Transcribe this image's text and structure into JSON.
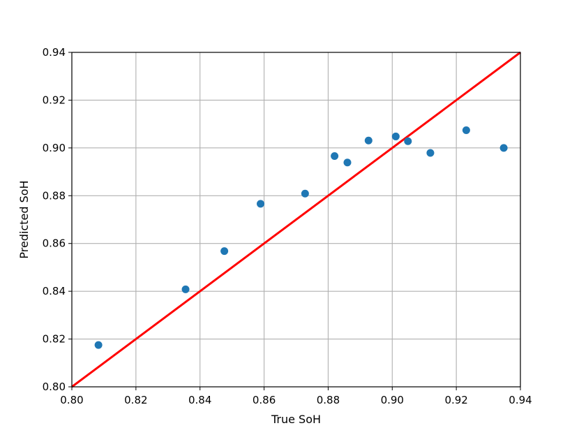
{
  "chart_data": {
    "type": "scatter",
    "xlabel": "True SoH",
    "ylabel": "Predicted SoH",
    "xlim": [
      0.8,
      0.94
    ],
    "ylim": [
      0.8,
      0.94
    ],
    "xticks": [
      "0.80",
      "0.82",
      "0.84",
      "0.86",
      "0.88",
      "0.90",
      "0.92",
      "0.94"
    ],
    "yticks": [
      "0.80",
      "0.82",
      "0.84",
      "0.86",
      "0.88",
      "0.90",
      "0.92",
      "0.94"
    ],
    "grid": true,
    "series": [
      {
        "type": "scatter",
        "color": "#1f77b4",
        "points": [
          {
            "x": 0.8083,
            "y": 0.8175
          },
          {
            "x": 0.8355,
            "y": 0.8408
          },
          {
            "x": 0.8476,
            "y": 0.8568
          },
          {
            "x": 0.8589,
            "y": 0.8766
          },
          {
            "x": 0.8728,
            "y": 0.8809
          },
          {
            "x": 0.882,
            "y": 0.8966
          },
          {
            "x": 0.886,
            "y": 0.8939
          },
          {
            "x": 0.8926,
            "y": 0.9031
          },
          {
            "x": 0.9011,
            "y": 0.9048
          },
          {
            "x": 0.9049,
            "y": 0.9028
          },
          {
            "x": 0.9119,
            "y": 0.8979
          },
          {
            "x": 0.9231,
            "y": 0.9074
          },
          {
            "x": 0.9348,
            "y": 0.9
          }
        ]
      },
      {
        "type": "line",
        "color": "#ff0000",
        "points": [
          {
            "x": 0.8,
            "y": 0.8
          },
          {
            "x": 0.94,
            "y": 0.94
          }
        ]
      }
    ]
  }
}
